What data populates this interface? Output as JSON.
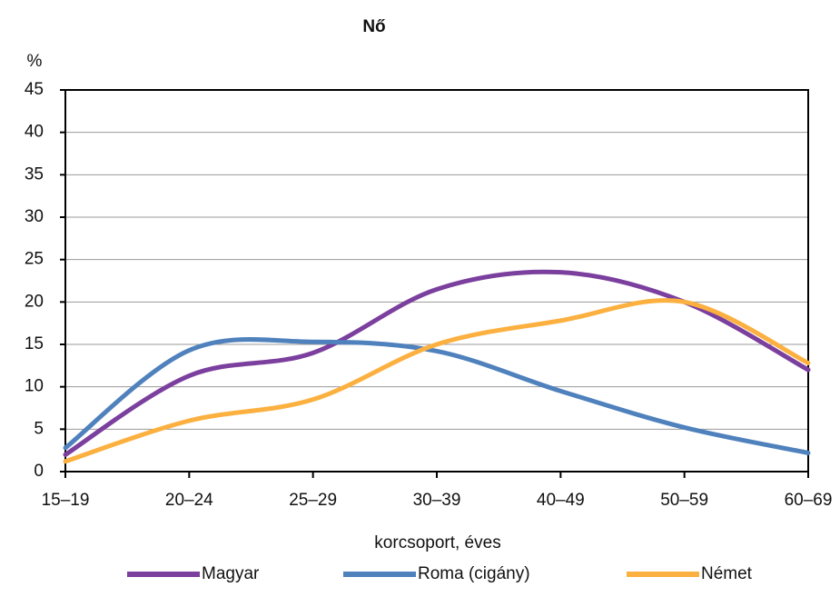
{
  "chart_data": {
    "type": "line",
    "title": "Nő",
    "y_label": "%",
    "x_label": "korcsoport, éves",
    "categories": [
      "15–19",
      "20–24",
      "25–29",
      "30–39",
      "40–49",
      "50–59",
      "60–69"
    ],
    "series": [
      {
        "name": "Magyar",
        "color": "#7b3f9e",
        "values": [
          2,
          11.3,
          14,
          21.5,
          23.5,
          20,
          12
        ]
      },
      {
        "name": "Roma (cigány)",
        "color": "#4f81bd",
        "values": [
          2.8,
          14.3,
          15.3,
          14.2,
          9.5,
          5.2,
          2.2
        ]
      },
      {
        "name": "Német",
        "color": "#fbb040",
        "values": [
          1.2,
          6,
          8.5,
          15,
          17.8,
          20,
          12.8
        ]
      }
    ],
    "ylim": [
      0,
      45
    ],
    "yticks": [
      0,
      5,
      10,
      15,
      20,
      25,
      30,
      35,
      40,
      45
    ],
    "grid": true,
    "smooth": true
  }
}
